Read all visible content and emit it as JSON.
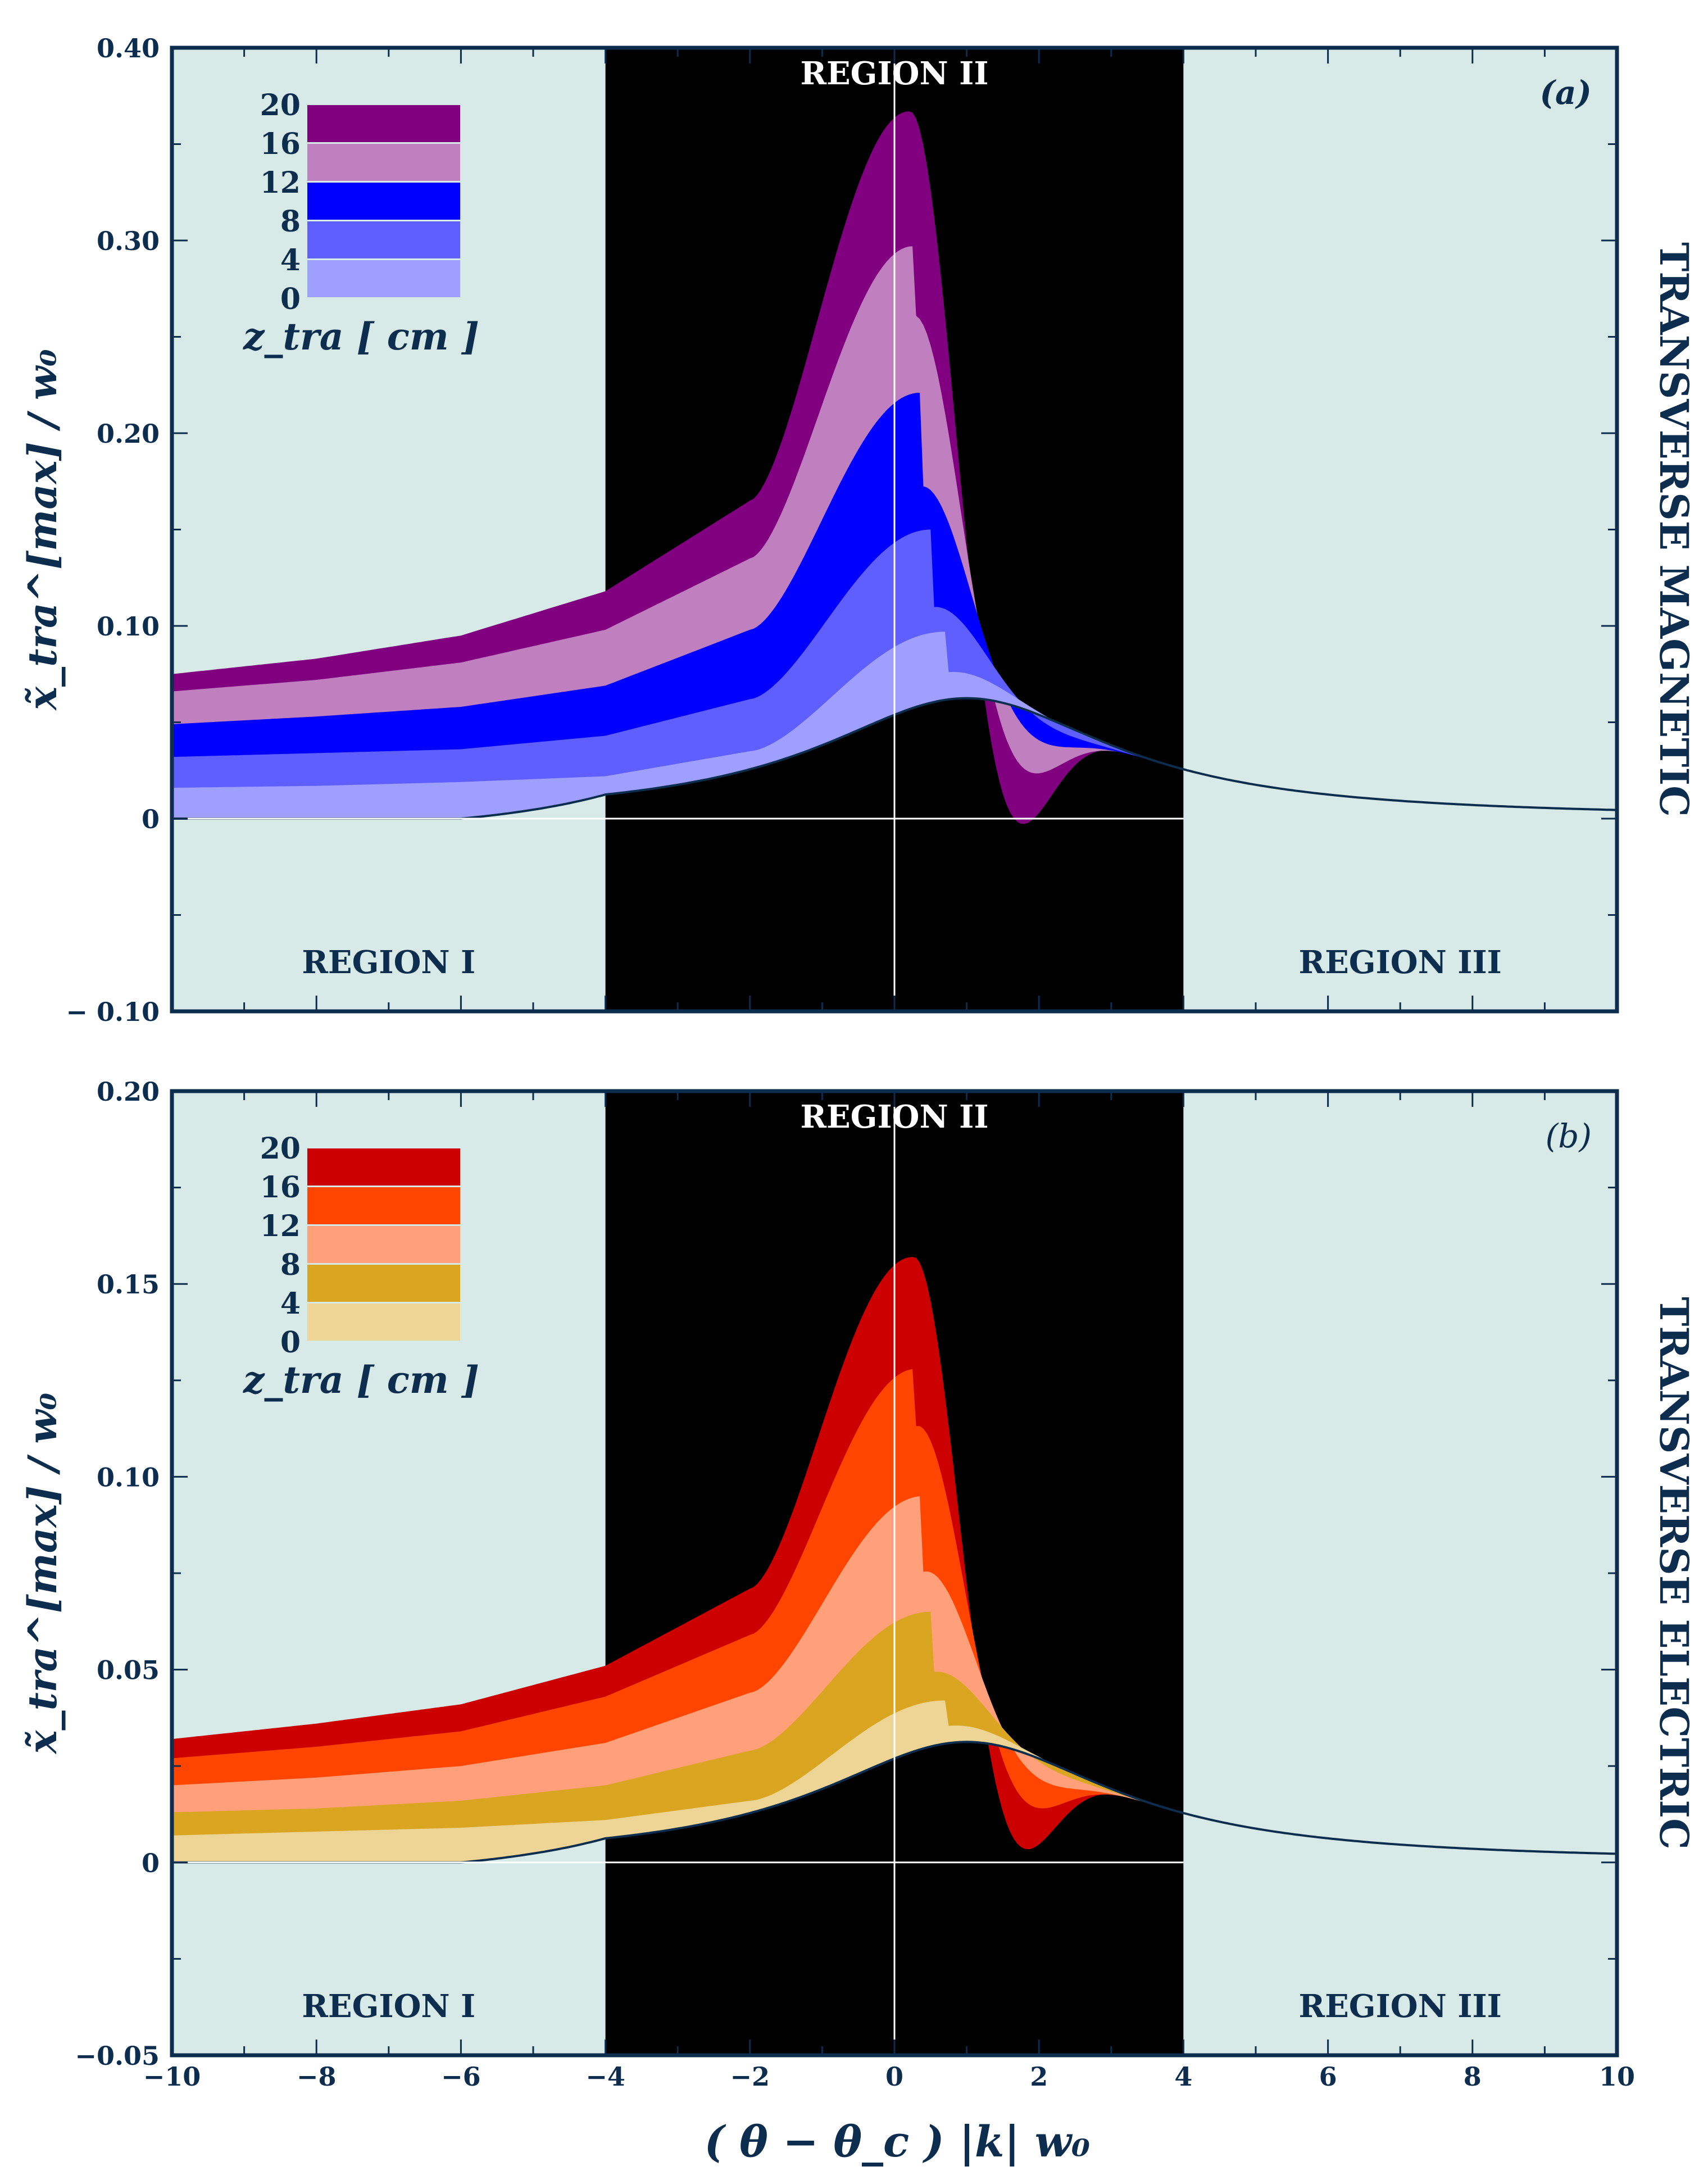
{
  "figure": {
    "xlabel": "( θ − θ_c ) |k| w₀",
    "xticks": [
      -10,
      -8,
      -6,
      -4,
      -2,
      0,
      2,
      4,
      6,
      8,
      10
    ],
    "xtick_labels": [
      "−10",
      "−8",
      "−6",
      "−4",
      "−2",
      "0",
      "2",
      "4",
      "6",
      "8",
      "10"
    ],
    "ylabel": "x̃_tra^[max] / w₀",
    "region_labels": {
      "r1": "REGION I",
      "r2": "REGION II",
      "r3": "REGION III"
    },
    "legend_title": "z_tra [ cm ]",
    "region_bounds": [
      -4,
      4
    ],
    "colors": {
      "axis_frame": "#0d2d4f",
      "region_side_bg": "#d7eae7",
      "region_mid_bg": "#000000",
      "text_dark": "#0d2d4f",
      "text_light": "#ffffff"
    }
  },
  "chart_data": [
    {
      "type": "area",
      "panel": "(a)",
      "side_label": "TRANSVERSE   MAGNETIC",
      "xlim": [
        -10,
        10
      ],
      "ylim": [
        -0.1,
        0.4
      ],
      "yticks": [
        -0.1,
        0,
        0.1,
        0.2,
        0.3,
        0.4
      ],
      "ytick_labels": [
        "− 0.10",
        "0",
        "0.10",
        "0.20",
        "0.30",
        "0.40"
      ],
      "legend": {
        "labels": [
          "20",
          "16",
          "12",
          "8",
          "4",
          "0"
        ],
        "colors": [
          "#800080",
          "#c080c0",
          "#0000ff",
          "#5f5fff",
          "#9f9fff"
        ]
      },
      "peak_positions": [
        0.2,
        0.25,
        0.35,
        0.5,
        0.7
      ],
      "peak_heights": [
        0.367,
        0.297,
        0.221,
        0.15,
        0.097
      ],
      "series": [
        {
          "name": "20",
          "color": "#800080",
          "x": [
            -10,
            -8,
            -6,
            -4,
            -2
          ],
          "values": [
            0.075,
            0.083,
            0.095,
            0.118,
            0.165
          ]
        },
        {
          "name": "16",
          "color": "#c080c0",
          "x": [
            -10,
            -8,
            -6,
            -4,
            -2
          ],
          "values": [
            0.066,
            0.072,
            0.081,
            0.098,
            0.135
          ]
        },
        {
          "name": "12",
          "color": "#0000ff",
          "x": [
            -10,
            -8,
            -6,
            -4,
            -2
          ],
          "values": [
            0.049,
            0.053,
            0.058,
            0.069,
            0.098
          ]
        },
        {
          "name": "8",
          "color": "#5f5fff",
          "x": [
            -10,
            -8,
            -6,
            -4,
            -2
          ],
          "values": [
            0.032,
            0.034,
            0.036,
            0.043,
            0.062
          ]
        },
        {
          "name": "4",
          "color": "#9f9fff",
          "x": [
            -10,
            -8,
            -6,
            -4,
            -2
          ],
          "values": [
            0.016,
            0.017,
            0.019,
            0.022,
            0.035
          ]
        }
      ],
      "tail": {
        "x": [
          4,
          6,
          8,
          10
        ],
        "values": [
          0.035,
          0.029,
          0.026,
          0.022
        ]
      }
    },
    {
      "type": "area",
      "panel": "(b)",
      "side_label": "TRANSVERSE   ELECTRIC",
      "xlim": [
        -10,
        10
      ],
      "ylim": [
        -0.05,
        0.2
      ],
      "yticks": [
        -0.05,
        0,
        0.05,
        0.1,
        0.15,
        0.2
      ],
      "ytick_labels": [
        "−0.05",
        "0",
        "0.05",
        "0.10",
        "0.15",
        "0.20"
      ],
      "legend": {
        "labels": [
          "20",
          "16",
          "12",
          "8",
          "4",
          "0"
        ],
        "colors": [
          "#cc0000",
          "#ff4500",
          "#ffa07a",
          "#daa520",
          "#eed595"
        ]
      },
      "peak_positions": [
        0.25,
        0.3,
        0.4,
        0.5,
        0.7
      ],
      "peak_heights": [
        0.157,
        0.128,
        0.095,
        0.065,
        0.042
      ],
      "series": [
        {
          "name": "20",
          "color": "#cc0000",
          "x": [
            -10,
            -8,
            -6,
            -4,
            -2
          ],
          "values": [
            0.032,
            0.036,
            0.041,
            0.051,
            0.071
          ]
        },
        {
          "name": "16",
          "color": "#ff4500",
          "x": [
            -10,
            -8,
            -6,
            -4,
            -2
          ],
          "values": [
            0.027,
            0.03,
            0.034,
            0.043,
            0.059
          ]
        },
        {
          "name": "12",
          "color": "#ffa07a",
          "x": [
            -10,
            -8,
            -6,
            -4,
            -2
          ],
          "values": [
            0.02,
            0.022,
            0.025,
            0.031,
            0.044
          ]
        },
        {
          "name": "8",
          "color": "#daa520",
          "x": [
            -10,
            -8,
            -6,
            -4,
            -2
          ],
          "values": [
            0.013,
            0.014,
            0.016,
            0.02,
            0.029
          ]
        },
        {
          "name": "4",
          "color": "#eed595",
          "x": [
            -10,
            -8,
            -6,
            -4,
            -2
          ],
          "values": [
            0.007,
            0.008,
            0.009,
            0.011,
            0.016
          ]
        }
      ],
      "tail": {
        "x": [
          4,
          6,
          8,
          10
        ],
        "values": [
          0.016,
          0.013,
          0.011,
          0.01
        ]
      }
    }
  ]
}
